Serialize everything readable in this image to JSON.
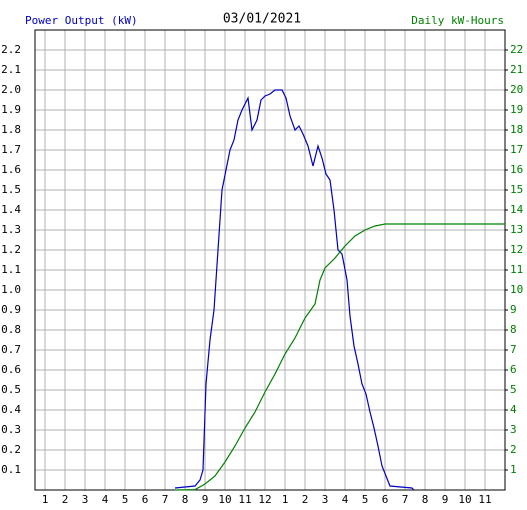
{
  "chart_data": {
    "type": "line",
    "title": "03/01/2021",
    "y_label": "Power Output (kW)",
    "y2_label": "Daily kW-Hours",
    "grid": true,
    "xlim": [
      0.5,
      24
    ],
    "xticks": [
      1,
      2,
      3,
      4,
      5,
      6,
      7,
      8,
      9,
      10,
      11,
      12,
      {
        "value": 13,
        "label": "1"
      },
      {
        "value": 14,
        "label": "2"
      },
      {
        "value": 15,
        "label": "3"
      },
      {
        "value": 16,
        "label": "4"
      },
      {
        "value": 17,
        "label": "5"
      },
      {
        "value": 18,
        "label": "6"
      },
      {
        "value": 19,
        "label": "7"
      },
      {
        "value": 20,
        "label": "8"
      },
      {
        "value": 21,
        "label": "9"
      },
      {
        "value": 22,
        "label": "10"
      },
      {
        "value": 23,
        "label": "11"
      }
    ],
    "ylim": [
      0,
      2.3
    ],
    "yticks": [
      0.1,
      0.2,
      0.3,
      0.4,
      0.5,
      0.6,
      0.7,
      0.8,
      0.9,
      {
        "value": 1,
        "label": "1.0"
      },
      1.1,
      1.2,
      1.3,
      1.4,
      1.5,
      1.6,
      1.7,
      1.8,
      1.9,
      {
        "value": 2,
        "label": "2.0"
      },
      2.1,
      2.2
    ],
    "y2lim": [
      0,
      23
    ],
    "y2ticks": [
      1,
      2,
      3,
      4,
      5,
      6,
      7,
      8,
      9,
      10,
      11,
      12,
      13,
      14,
      15,
      16,
      17,
      18,
      19,
      20,
      21,
      22
    ],
    "series": [
      {
        "name": "Power Output (kW)",
        "color": "#0000c0",
        "x": [
          7.5,
          8.5,
          8.75,
          8.9,
          9.05,
          9.25,
          9.45,
          9.65,
          9.85,
          10.05,
          10.25,
          10.45,
          10.65,
          10.85,
          11.15,
          11.35,
          11.6,
          11.8,
          12.0,
          12.25,
          12.5,
          12.85,
          13.05,
          13.25,
          13.5,
          13.7,
          13.9,
          14.15,
          14.4,
          14.65,
          14.85,
          15.05,
          15.25,
          15.45,
          15.65,
          15.85,
          16.1,
          16.25,
          16.45,
          16.65,
          16.85,
          17.05,
          17.25,
          17.45,
          17.65,
          17.85,
          18.05,
          18.25,
          19.35,
          19.45
        ],
        "values": [
          0.01,
          0.02,
          0.05,
          0.1,
          0.53,
          0.75,
          0.9,
          1.2,
          1.5,
          1.6,
          1.7,
          1.75,
          1.85,
          1.9,
          1.96,
          1.8,
          1.85,
          1.95,
          1.97,
          1.98,
          2.0,
          2.0,
          1.96,
          1.87,
          1.8,
          1.82,
          1.78,
          1.72,
          1.62,
          1.72,
          1.66,
          1.58,
          1.55,
          1.4,
          1.2,
          1.18,
          1.05,
          0.87,
          0.72,
          0.63,
          0.53,
          0.48,
          0.39,
          0.31,
          0.22,
          0.12,
          0.07,
          0.02,
          0.01,
          0
        ]
      },
      {
        "name": "Daily kW-Hours",
        "color": "#008000",
        "axis": "y2",
        "x": [
          7.5,
          8.5,
          9,
          9.5,
          10,
          10.5,
          11,
          11.5,
          12,
          12.5,
          13,
          13.5,
          14,
          14.5,
          14.75,
          15,
          15.5,
          16,
          16.5,
          17,
          17.5,
          18,
          24
        ],
        "values": [
          0,
          0.02,
          0.3,
          0.7,
          1.4,
          2.2,
          3.1,
          3.9,
          4.9,
          5.8,
          6.8,
          7.6,
          8.6,
          9.3,
          10.5,
          11.1,
          11.6,
          12.2,
          12.7,
          13.0,
          13.2,
          13.3,
          13.3
        ]
      }
    ]
  }
}
